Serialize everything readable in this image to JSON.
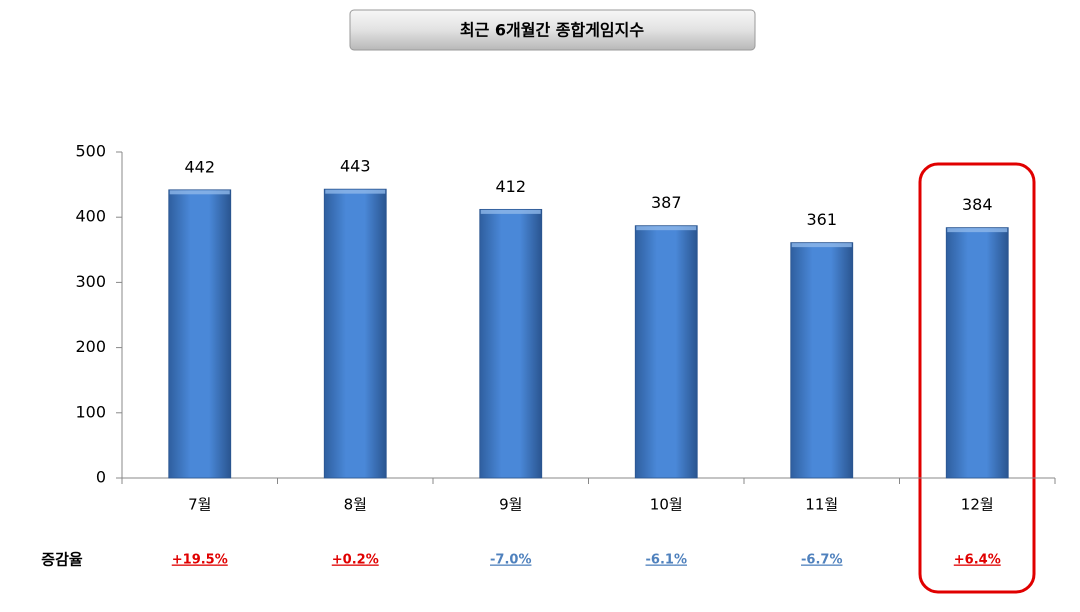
{
  "chart_data": {
    "type": "bar",
    "title": "최근 6개월간 종합게임지수",
    "categories": [
      "7월",
      "8월",
      "9월",
      "10월",
      "11월",
      "12월"
    ],
    "values": [
      442,
      443,
      412,
      387,
      361,
      384
    ],
    "color": "#3b78c8",
    "ylim": [
      0,
      500
    ],
    "yticks": [
      0,
      100,
      200,
      300,
      400,
      500
    ],
    "change_title": "증감율",
    "changes": [
      19.5,
      0.2,
      -7.0,
      -6.1,
      -6.7,
      6.4
    ],
    "change_labels": [
      "+19.5%",
      "+0.2%",
      "-7.0%",
      "-6.1%",
      "-6.7%",
      "+6.4%"
    ],
    "positive_color": "#e00000",
    "negative_color": "#4f81bd"
  }
}
